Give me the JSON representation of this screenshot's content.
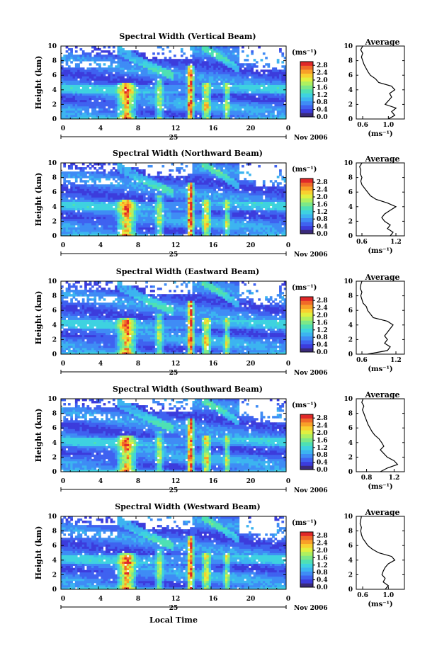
{
  "figure": {
    "ylabel": "Height (km)",
    "xlabel": "Local Time",
    "date_label": "Nov 2006",
    "day_label": "25",
    "avg_title": "Average",
    "cbar_unit": "(ms⁻¹)",
    "avg_xlabel": "(ms⁻¹)",
    "colors": {
      "scale": [
        "#3a2a7a",
        "#3c3cdc",
        "#3f62f0",
        "#3f8cf5",
        "#3cb4f0",
        "#3ed2e0",
        "#4ee0b4",
        "#7ce888",
        "#aef060",
        "#e0f040",
        "#f8d030",
        "#f8a028",
        "#f06a28",
        "#e02828"
      ]
    }
  },
  "chart_data": [
    {
      "type": "heatmap",
      "title": "Spectral Width (Vertical Beam)",
      "x_ticks": [
        "0",
        "4",
        "8",
        "12",
        "16",
        "20",
        "0"
      ],
      "y_ticks": [
        "0",
        "2",
        "4",
        "6",
        "8",
        "10"
      ],
      "xlim": [
        0,
        24
      ],
      "ylim": [
        0,
        10
      ],
      "colorbar": {
        "ticks": [
          "0.0",
          "0.4",
          "0.8",
          "1.2",
          "1.6",
          "2.0",
          "2.4",
          "2.8"
        ],
        "range": [
          0,
          3.0
        ]
      },
      "average_profile": {
        "x_ticks": [
          "0.6",
          "1.0"
        ],
        "xlim": [
          0.5,
          1.25
        ],
        "height": [
          0,
          0.5,
          1,
          1.5,
          2,
          2.5,
          3,
          3.5,
          4,
          4.5,
          5,
          5.5,
          6,
          6.5,
          7,
          7.5,
          8,
          8.5,
          9,
          9.5,
          10
        ],
        "values": [
          1.0,
          1.1,
          1.05,
          1.12,
          0.95,
          1.0,
          1.05,
          1.02,
          1.1,
          1.05,
          0.85,
          0.8,
          0.72,
          0.68,
          0.65,
          0.62,
          0.6,
          0.58,
          0.6,
          0.57,
          0.6
        ]
      }
    },
    {
      "type": "heatmap",
      "title": "Spectral Width (Northward Beam)",
      "x_ticks": [
        "0",
        "4",
        "8",
        "12",
        "16",
        "20",
        "0"
      ],
      "y_ticks": [
        "0",
        "2",
        "4",
        "6",
        "8",
        "10"
      ],
      "xlim": [
        0,
        24
      ],
      "ylim": [
        0,
        10
      ],
      "colorbar": {
        "ticks": [
          "0.0",
          "0.4",
          "0.8",
          "1.2",
          "1.6",
          "2.0",
          "2.4",
          "2.8"
        ],
        "range": [
          0,
          3.0
        ]
      },
      "average_profile": {
        "x_ticks": [
          "0.6",
          "1.2"
        ],
        "xlim": [
          0.5,
          1.35
        ],
        "height": [
          0,
          0.5,
          1,
          1.5,
          2,
          2.5,
          3,
          3.5,
          4,
          4.5,
          5,
          5.5,
          6,
          6.5,
          7,
          7.5,
          8,
          8.5,
          9,
          9.5,
          10
        ],
        "values": [
          1.1,
          1.15,
          1.05,
          1.1,
          1.0,
          0.95,
          1.0,
          1.1,
          1.2,
          1.05,
          0.85,
          0.75,
          0.7,
          0.65,
          0.6,
          0.58,
          0.6,
          0.57,
          0.58,
          0.56,
          0.6
        ]
      }
    },
    {
      "type": "heatmap",
      "title": "Spectral Width (Eastward Beam)",
      "x_ticks": [
        "0",
        "4",
        "8",
        "12",
        "16",
        "20",
        "0"
      ],
      "y_ticks": [
        "0",
        "2",
        "4",
        "6",
        "8",
        "10"
      ],
      "xlim": [
        0,
        24
      ],
      "ylim": [
        0,
        10
      ],
      "colorbar": {
        "ticks": [
          "0.0",
          "0.4",
          "0.8",
          "1.2",
          "1.6",
          "2.0",
          "2.4",
          "2.8"
        ],
        "range": [
          0,
          3.0
        ]
      },
      "average_profile": {
        "x_ticks": [
          "0.6",
          "1.2"
        ],
        "xlim": [
          0.5,
          1.35
        ],
        "height": [
          0,
          0.5,
          1,
          1.5,
          2,
          2.5,
          3,
          3.5,
          4,
          4.5,
          5,
          5.5,
          6,
          6.5,
          7,
          7.5,
          8,
          8.5,
          9,
          9.5,
          10
        ],
        "values": [
          0.7,
          1.05,
          1.1,
          1.0,
          1.05,
          1.0,
          1.05,
          1.1,
          1.15,
          1.05,
          0.8,
          0.75,
          0.7,
          0.68,
          0.62,
          0.6,
          0.58,
          0.6,
          0.57,
          0.58,
          0.6
        ]
      }
    },
    {
      "type": "heatmap",
      "title": "Spectral Width (Southward Beam)",
      "x_ticks": [
        "0",
        "4",
        "8",
        "12",
        "16",
        "20",
        "0"
      ],
      "y_ticks": [
        "0",
        "2",
        "4",
        "6",
        "8",
        "10"
      ],
      "xlim": [
        0,
        24
      ],
      "ylim": [
        0,
        10
      ],
      "colorbar": {
        "ticks": [
          "0.0",
          "0.4",
          "0.8",
          "1.2",
          "1.6",
          "2.0",
          "2.4",
          "2.8"
        ],
        "range": [
          0,
          3.0
        ]
      },
      "average_profile": {
        "x_ticks": [
          "0.8",
          "1.2"
        ],
        "xlim": [
          0.65,
          1.35
        ],
        "height": [
          0,
          0.5,
          1,
          1.5,
          2,
          2.5,
          3,
          3.5,
          4,
          4.5,
          5,
          5.5,
          6,
          6.5,
          7,
          7.5,
          8,
          8.5,
          9,
          9.5,
          10
        ],
        "values": [
          1.0,
          1.1,
          1.25,
          1.2,
          1.1,
          1.05,
          1.0,
          1.05,
          1.02,
          0.98,
          0.92,
          0.88,
          0.85,
          0.82,
          0.8,
          0.78,
          0.76,
          0.74,
          0.76,
          0.73,
          0.75
        ]
      }
    },
    {
      "type": "heatmap",
      "title": "Spectral Width (Westward Beam)",
      "x_ticks": [
        "0",
        "4",
        "8",
        "12",
        "16",
        "20",
        "0"
      ],
      "y_ticks": [
        "0",
        "2",
        "4",
        "6",
        "8",
        "10"
      ],
      "xlim": [
        0,
        24
      ],
      "ylim": [
        0,
        10
      ],
      "colorbar": {
        "ticks": [
          "0.0",
          "0.4",
          "0.8",
          "1.2",
          "1.6",
          "2.0",
          "2.4",
          "2.8"
        ],
        "range": [
          0,
          3.0
        ]
      },
      "average_profile": {
        "x_ticks": [
          "0.6",
          "1.0"
        ],
        "xlim": [
          0.5,
          1.25
        ],
        "height": [
          0,
          0.5,
          1,
          1.5,
          2,
          2.5,
          3,
          3.5,
          4,
          4.5,
          5,
          5.5,
          6,
          6.5,
          7,
          7.5,
          8,
          8.5,
          9,
          9.5,
          10
        ],
        "values": [
          0.95,
          1.0,
          0.92,
          0.95,
          0.9,
          0.92,
          0.95,
          1.0,
          1.1,
          1.05,
          0.85,
          0.75,
          0.68,
          0.64,
          0.6,
          0.58,
          0.57,
          0.58,
          0.56,
          0.57,
          0.58
        ]
      }
    }
  ]
}
